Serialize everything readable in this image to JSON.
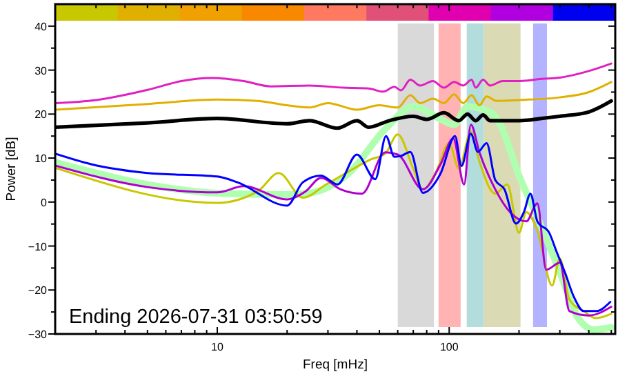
{
  "chart_data": {
    "type": "line",
    "xlabel": "Freq [mHz]",
    "ylabel": "Power [dB]",
    "log": "x",
    "xlim": [
      2,
      520
    ],
    "ylim": [
      -30,
      45
    ],
    "xticks": [
      {
        "value": 2,
        "label": null
      },
      {
        "value": 3,
        "label": null
      },
      {
        "value": 4,
        "label": null
      },
      {
        "value": 5,
        "label": null
      },
      {
        "value": 6,
        "label": null
      },
      {
        "value": 7,
        "label": null
      },
      {
        "value": 8,
        "label": null
      },
      {
        "value": 9,
        "label": null
      },
      10,
      {
        "value": 20,
        "label": null
      },
      {
        "value": 30,
        "label": null
      },
      {
        "value": 40,
        "label": null
      },
      {
        "value": 50,
        "label": null
      },
      {
        "value": 60,
        "label": null
      },
      {
        "value": 70,
        "label": null
      },
      {
        "value": 80,
        "label": null
      },
      {
        "value": 90,
        "label": null
      },
      100,
      {
        "value": 200,
        "label": null
      },
      {
        "value": 300,
        "label": null
      },
      {
        "value": 400,
        "label": null
      },
      {
        "value": 500,
        "label": null
      }
    ],
    "yticks": [
      -30,
      {
        "value": -25,
        "label": null
      },
      -20,
      {
        "value": -15,
        "label": null
      },
      -10,
      {
        "value": -5,
        "label": null
      },
      0,
      {
        "value": 5,
        "label": null
      },
      10,
      {
        "value": 15,
        "label": null
      },
      20,
      {
        "value": 25,
        "label": null
      },
      30,
      {
        "value": 35,
        "label": null
      },
      40
    ],
    "grid": false,
    "marker": "none",
    "line_style": "solid",
    "bands": [
      {
        "axis": "x",
        "from": 60,
        "to": 86,
        "color": "#d9d9d9"
      },
      {
        "axis": "x",
        "from": 90,
        "to": 112,
        "color": "#ffb3b3"
      },
      {
        "axis": "x",
        "from": 119,
        "to": 141,
        "color": "#b3dcdc"
      },
      {
        "axis": "x",
        "from": 141,
        "to": 203,
        "color": "#dadab5"
      },
      {
        "axis": "x",
        "from": 230,
        "to": 264,
        "color": "#b3b3ff"
      }
    ],
    "annotations": [
      "Ending 2026-07-31 03:50:59"
    ],
    "series": [
      {
        "color": "#b0ffb0",
        "x": [
          2,
          5,
          10,
          20,
          24,
          37,
          53,
          70,
          90,
          105,
          120,
          153,
          166,
          200,
          240,
          300,
          360,
          420,
          500
        ],
        "values": [
          9,
          4,
          2,
          1.7,
          1.9,
          6.6,
          16.6,
          21.7,
          19.1,
          17.6,
          21.7,
          20.2,
          17.6,
          6,
          -3.4,
          -15.9,
          -26.4,
          -29,
          -28.5
        ]
      },
      {
        "color": "#e020c0",
        "x": [
          2,
          3,
          5,
          7,
          9.5,
          13,
          17,
          25,
          35,
          45,
          52,
          58,
          62,
          68,
          75,
          85,
          95,
          105,
          115,
          125,
          130,
          140,
          150,
          170,
          200,
          250,
          300,
          400,
          500
        ],
        "values": [
          22.5,
          23.2,
          25.5,
          27.5,
          28.2,
          27.5,
          26.3,
          26.5,
          26,
          25.8,
          25.1,
          26.2,
          25.4,
          27.8,
          26.5,
          27.5,
          26,
          27.3,
          26.5,
          27.8,
          26,
          27.8,
          26.5,
          27.5,
          27.5,
          28,
          28.3,
          29.8,
          31.5
        ]
      },
      {
        "color": "#e0b000",
        "x": [
          2,
          5,
          10,
          15,
          20,
          25,
          30,
          40,
          50,
          60,
          68,
          75,
          85,
          95,
          105,
          115,
          125,
          135,
          145,
          160,
          200,
          300,
          400,
          500
        ],
        "values": [
          21,
          22.3,
          23.3,
          23,
          22,
          21.5,
          22.5,
          21,
          22,
          21.5,
          24.3,
          22.5,
          23.5,
          22.5,
          24.5,
          22.5,
          24.3,
          22,
          24,
          23,
          23.2,
          23.8,
          25,
          27.3
        ]
      },
      {
        "color": "#000000",
        "x": [
          2,
          5,
          10,
          20,
          25,
          33,
          40,
          45,
          55,
          70,
          80,
          95,
          110,
          120,
          130,
          140,
          150,
          200,
          250,
          300,
          400,
          500
        ],
        "values": [
          17,
          18,
          19,
          17.8,
          18.5,
          16.8,
          18.5,
          17,
          18.5,
          19.5,
          18.8,
          20.3,
          18.5,
          20,
          18.5,
          19.8,
          18.5,
          18.5,
          19,
          19.5,
          20.5,
          23
        ]
      },
      {
        "color": "#c8c800",
        "x": [
          2,
          10,
          15,
          18.4,
          23.4,
          29.5,
          37,
          46,
          53,
          60,
          70,
          77,
          88,
          100,
          110,
          124,
          135,
          158,
          178,
          200,
          215,
          240,
          278,
          300,
          330,
          380,
          430,
          500
        ],
        "values": [
          7.8,
          -0.2,
          2.5,
          6.6,
          1,
          4,
          7,
          9.7,
          11,
          15.4,
          7.6,
          2.9,
          7,
          13.4,
          7.6,
          16,
          9.2,
          1.9,
          4,
          -7,
          -2.3,
          -6.5,
          -19,
          -12.8,
          -22.2,
          -24.8,
          -26.4,
          -25.4
        ]
      },
      {
        "color": "#b000d0",
        "x": [
          2,
          5,
          10,
          13,
          20,
          24,
          28,
          34,
          42,
          53,
          60,
          77,
          92,
          104,
          116,
          124,
          135,
          158,
          183,
          215,
          240,
          262,
          300,
          330,
          400,
          500
        ],
        "values": [
          8.3,
          3.4,
          2.2,
          3.6,
          0.6,
          2.4,
          5.5,
          2.9,
          1.9,
          11.3,
          10.8,
          2.9,
          8.7,
          14.5,
          4,
          17.6,
          11.3,
          2.9,
          -2.3,
          -4.4,
          -0.3,
          -15.4,
          -13.8,
          -24.8,
          -25.8,
          -23.8
        ]
      },
      {
        "color": "#0000ff",
        "x": [
          2,
          2.86,
          5,
          10,
          12.2,
          20,
          23.4,
          28,
          33,
          40,
          48,
          53.4,
          58,
          62,
          68,
          77,
          92,
          106,
          113,
          124,
          133,
          145,
          158,
          173,
          194,
          210,
          224,
          240,
          270,
          290,
          315,
          345,
          380,
          430,
          495
        ],
        "values": [
          11,
          8.6,
          6.6,
          5.8,
          4.5,
          -0.8,
          4.5,
          6,
          4,
          10.8,
          5.2,
          15,
          10.3,
          10.5,
          11.4,
          2.1,
          6.6,
          15,
          8.2,
          15.5,
          11.4,
          13.4,
          5,
          2.9,
          -4.9,
          -2.3,
          1.9,
          -4.4,
          -7,
          -11.2,
          -15.9,
          -21.6,
          -24.8,
          -24.8,
          -22.7
        ]
      }
    ]
  }
}
